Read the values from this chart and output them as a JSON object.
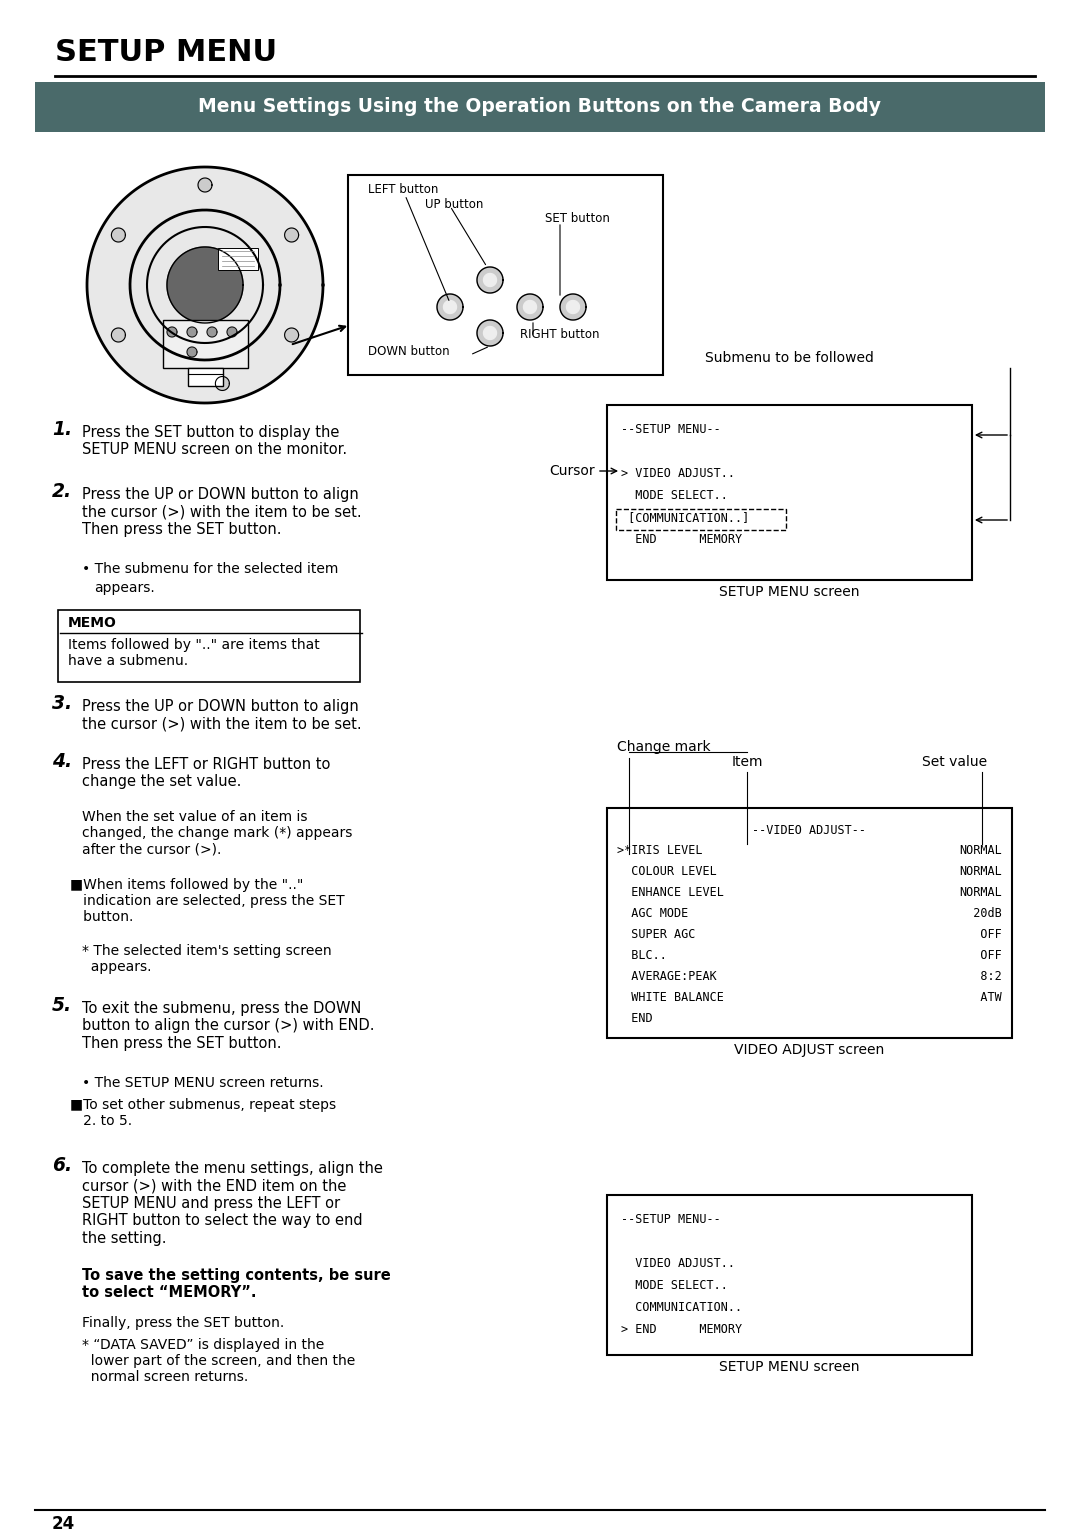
{
  "title": "SETUP MENU",
  "header_text": "Menu Settings Using the Operation Buttons on the Camera Body",
  "header_bg": "#4a6a6a",
  "header_fg": "#ffffff",
  "page_bg": "#ffffff",
  "page_num": "24",
  "memo_text": "Items followed by \"..\" are items that\nhave a submenu.",
  "screen1_lines": [
    "--SETUP MENU--",
    "",
    "> VIDEO ADJUST..",
    "  MODE SELECT..",
    " [COMMUNICATION..]",
    "  END      MEMORY"
  ],
  "screen2_title": "--VIDEO ADJUST--",
  "screen3_lines": [
    "--SETUP MENU--",
    "",
    "  VIDEO ADJUST..",
    "  MODE SELECT..",
    "  COMMUNICATION..",
    "> END      MEMORY"
  ],
  "label_cursor": "Cursor",
  "label_submenu": "Submenu to be followed",
  "label_change_mark": "Change mark",
  "label_item": "Item",
  "label_set_value": "Set value",
  "label_setup_menu_screen": "SETUP MENU screen",
  "label_video_adjust_screen": "VIDEO ADJUST screen",
  "label_setup_menu_screen2": "SETUP MENU screen"
}
